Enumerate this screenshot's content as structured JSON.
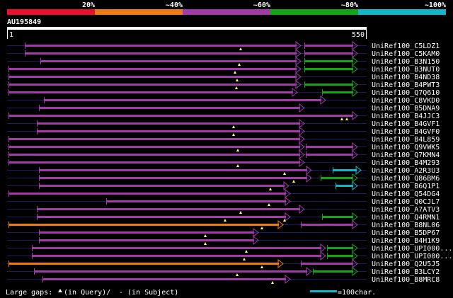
{
  "identity_scale": {
    "labels": [
      "20%",
      "~40%",
      "~60%",
      "~80%",
      "~100%"
    ],
    "colors": [
      "#e8102d",
      "#f07a12",
      "#a23aa8",
      "#14a514",
      "#12b6c8"
    ]
  },
  "query": {
    "id": "AU195849",
    "start": "1",
    "end": "550",
    "length": 550
  },
  "hits": [
    {
      "name": "UniRef100_C5LDZ1",
      "segs": [
        {
          "s": 35,
          "e": 425,
          "c": "purple"
        },
        {
          "s": 430,
          "e": 505,
          "c": "purple"
        }
      ],
      "marks": [
        340
      ]
    },
    {
      "name": "UniRef100_C5KAM0",
      "segs": [
        {
          "s": 35,
          "e": 425,
          "c": "purple"
        },
        {
          "s": 430,
          "e": 505,
          "c": "purple"
        }
      ],
      "marks": []
    },
    {
      "name": "UniRef100_B3N150",
      "segs": [
        {
          "s": 57,
          "e": 425,
          "c": "purple"
        },
        {
          "s": 430,
          "e": 505,
          "c": "green"
        }
      ],
      "marks": [
        338
      ]
    },
    {
      "name": "UniRef100_B3NUT0",
      "segs": [
        {
          "s": 12,
          "e": 425,
          "c": "purple"
        },
        {
          "s": 430,
          "e": 505,
          "c": "green"
        }
      ],
      "marks": [
        332
      ]
    },
    {
      "name": "UniRef100_B4ND38",
      "segs": [
        {
          "s": 12,
          "e": 425,
          "c": "purple"
        }
      ],
      "marks": [
        335
      ]
    },
    {
      "name": "UniRef100_B4PWT3",
      "segs": [
        {
          "s": 12,
          "e": 425,
          "c": "purple"
        },
        {
          "s": 430,
          "e": 505,
          "c": "green"
        }
      ],
      "marks": [
        334
      ]
    },
    {
      "name": "UniRef100_Q7Q610",
      "segs": [
        {
          "s": 12,
          "e": 420,
          "c": "purple"
        },
        {
          "s": 455,
          "e": 505,
          "c": "green"
        }
      ],
      "marks": []
    },
    {
      "name": "UniRef100_C8VKD0",
      "segs": [
        {
          "s": 62,
          "e": 460,
          "c": "purple"
        }
      ],
      "marks": []
    },
    {
      "name": "UniRef100_B5DNA9",
      "segs": [
        {
          "s": 55,
          "e": 430,
          "c": "purple"
        }
      ],
      "marks": []
    },
    {
      "name": "UniRef100_B4JJC3",
      "segs": [
        {
          "s": 12,
          "e": 505,
          "c": "purple"
        }
      ],
      "marks": [
        483,
        490
      ]
    },
    {
      "name": "UniRef100_B4GVF1",
      "segs": [
        {
          "s": 52,
          "e": 430,
          "c": "purple"
        }
      ],
      "marks": [
        330
      ]
    },
    {
      "name": "UniRef100_B4GVF0",
      "segs": [
        {
          "s": 52,
          "e": 430,
          "c": "purple"
        }
      ],
      "marks": [
        330
      ]
    },
    {
      "name": "UniRef100_B4L859",
      "segs": [
        {
          "s": 12,
          "e": 430,
          "c": "purple"
        }
      ],
      "marks": []
    },
    {
      "name": "UniRef100_Q9VWK5",
      "segs": [
        {
          "s": 12,
          "e": 430,
          "c": "purple"
        },
        {
          "s": 432,
          "e": 505,
          "c": "purple"
        }
      ],
      "marks": [
        336
      ]
    },
    {
      "name": "UniRef100_Q7KMN4",
      "segs": [
        {
          "s": 12,
          "e": 430,
          "c": "purple"
        },
        {
          "s": 432,
          "e": 505,
          "c": "purple"
        }
      ],
      "marks": []
    },
    {
      "name": "UniRef100_B4M293",
      "segs": [
        {
          "s": 12,
          "e": 430,
          "c": "purple"
        }
      ],
      "marks": [
        336
      ]
    },
    {
      "name": "UniRef100_A2R3U3",
      "segs": [
        {
          "s": 55,
          "e": 440,
          "c": "purple"
        },
        {
          "s": 470,
          "e": 510,
          "c": "cyan"
        }
      ],
      "marks": [
        402
      ]
    },
    {
      "name": "UniRef100_Q86BM6",
      "segs": [
        {
          "s": 55,
          "e": 440,
          "c": "purple"
        },
        {
          "s": 453,
          "e": 505,
          "c": "green"
        }
      ],
      "marks": [
        415
      ]
    },
    {
      "name": "UniRef100_B6Q1P1",
      "segs": [
        {
          "s": 55,
          "e": 408,
          "c": "purple"
        },
        {
          "s": 474,
          "e": 505,
          "c": "cyan"
        }
      ],
      "marks": [
        382
      ]
    },
    {
      "name": "UniRef100_Q54DG4",
      "segs": [
        {
          "s": 12,
          "e": 410,
          "c": "purple"
        }
      ],
      "marks": []
    },
    {
      "name": "UniRef100_Q0CJL7",
      "segs": [
        {
          "s": 150,
          "e": 410,
          "c": "purple"
        }
      ],
      "marks": [
        380
      ]
    },
    {
      "name": "UniRef100_A7ATV3",
      "segs": [
        {
          "s": 52,
          "e": 430,
          "c": "purple"
        }
      ],
      "marks": [
        340
      ]
    },
    {
      "name": "UniRef100_Q4RMN1",
      "segs": [
        {
          "s": 52,
          "e": 410,
          "c": "purple"
        },
        {
          "s": 455,
          "e": 505,
          "c": "green"
        }
      ],
      "marks": [
        318,
        402
      ]
    },
    {
      "name": "UniRef100_B8NL06",
      "segs": [
        {
          "s": 12,
          "e": 400,
          "c": "orange"
        },
        {
          "s": 425,
          "e": 505,
          "c": "purple"
        }
      ],
      "marks": [
        370
      ]
    },
    {
      "name": "UniRef100_B5DP67",
      "segs": [
        {
          "s": 55,
          "e": 365,
          "c": "purple"
        }
      ],
      "marks": [
        290
      ]
    },
    {
      "name": "UniRef100_B4H1K9",
      "segs": [
        {
          "s": 55,
          "e": 365,
          "c": "purple"
        }
      ],
      "marks": [
        290
      ]
    },
    {
      "name": "UniRef100_UPI000...",
      "segs": [
        {
          "s": 45,
          "e": 460,
          "c": "purple"
        },
        {
          "s": 462,
          "e": 505,
          "c": "green"
        }
      ],
      "marks": [
        348
      ]
    },
    {
      "name": "UniRef100_UPI000...",
      "segs": [
        {
          "s": 45,
          "e": 460,
          "c": "purple"
        },
        {
          "s": 462,
          "e": 505,
          "c": "green"
        }
      ],
      "marks": [
        345
      ]
    },
    {
      "name": "UniRef100_Q2U5J5",
      "segs": [
        {
          "s": 12,
          "e": 400,
          "c": "orange"
        },
        {
          "s": 425,
          "e": 505,
          "c": "purple"
        }
      ],
      "marks": [
        370
      ]
    },
    {
      "name": "UniRef100_B3LCY2",
      "segs": [
        {
          "s": 48,
          "e": 440,
          "c": "purple"
        },
        {
          "s": 442,
          "e": 505,
          "c": "green"
        }
      ],
      "marks": [
        335
      ]
    },
    {
      "name": "UniRef100_B8MRC8",
      "segs": [
        {
          "s": 60,
          "e": 410,
          "c": "purple"
        }
      ],
      "marks": [
        385
      ]
    }
  ],
  "legend": {
    "gaps_text": "Large gaps:",
    "query_gap": "(in Query)/",
    "subject_gap": "- (in Subject)",
    "scale_text": "=100char.",
    "scale_color": "#12b6c8"
  },
  "colors": {
    "red": "#e8102d",
    "orange": "#f07a12",
    "purple": "#a23aa8",
    "green": "#14a514",
    "cyan": "#12b6c8",
    "text": "#ffffff",
    "gap_line": "#1b1b60",
    "marker": "#ffff66"
  }
}
